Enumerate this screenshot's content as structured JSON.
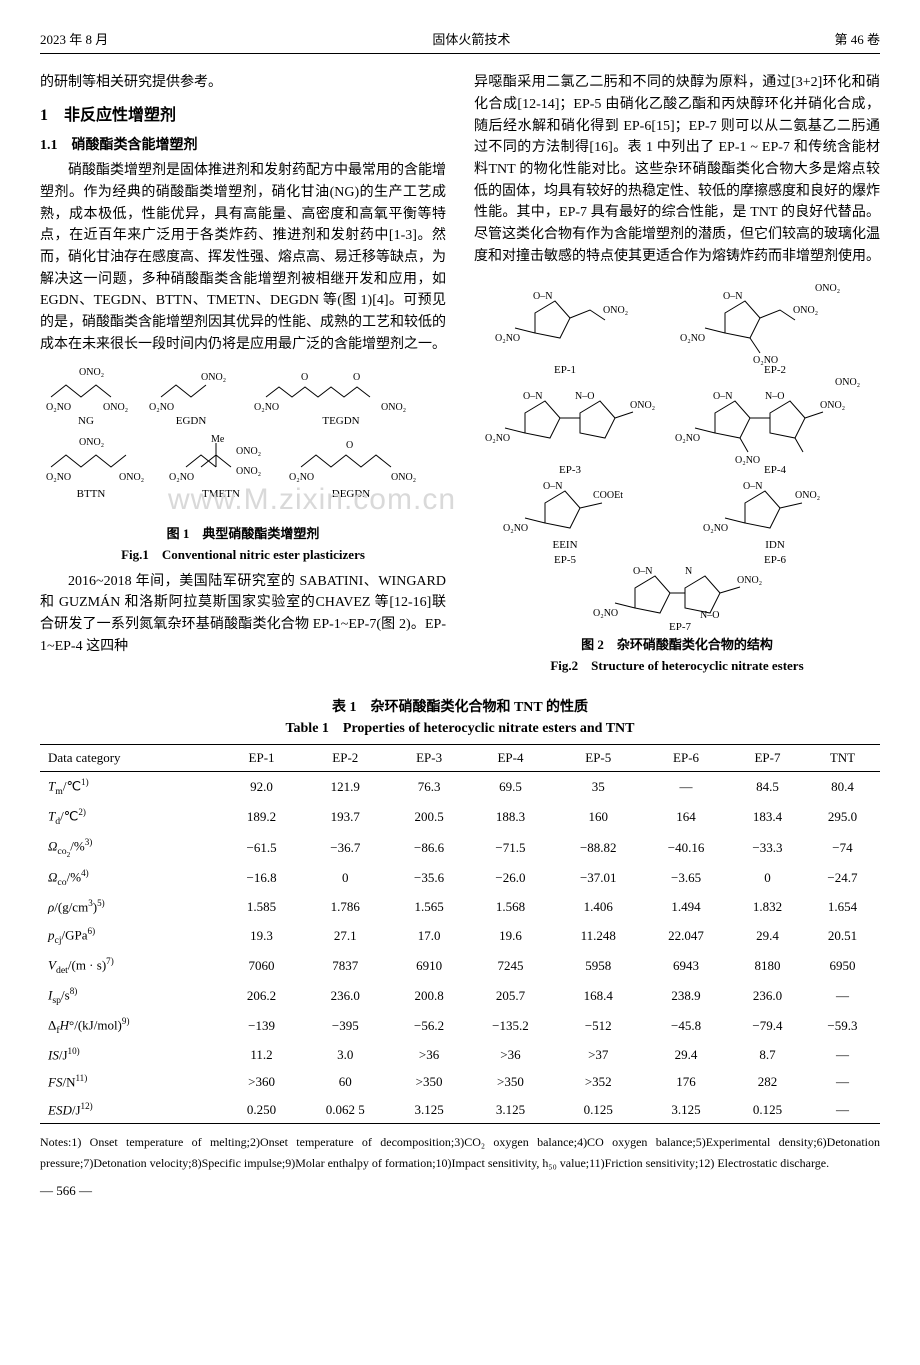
{
  "header": {
    "left": "2023 年 8 月",
    "center": "固体火箭技术",
    "right": "第 46 卷"
  },
  "left_col": {
    "intro_tail": "的研制等相关研究提供参考。",
    "sec1": "1　非反应性增塑剂",
    "sec1_1": "1.1　硝酸酯类含能增塑剂",
    "p1": "硝酸酯类增塑剂是固体推进剂和发射药配方中最常用的含能增塑剂。作为经典的硝酸酯类增塑剂，硝化甘油(NG)的生产工艺成熟，成本极低，性能优异，具有高能量、高密度和高氧平衡等特点，在近百年来广泛用于各类炸药、推进剂和发射药中[1-3]。然而，硝化甘油存在感度高、挥发性强、熔点高、易迁移等缺点，为解决这一问题，多种硝酸酯类含能增塑剂被相继开发和应用，如 EGDN、TEGDN、BTTN、TMETN、DEGDN 等(图 1)[4]。可预见的是，硝酸酯类含能增塑剂因其优异的性能、成熟的工艺和较低的成本在未来很长一段时间内仍将是应用最广泛的含能增塑剂之一。",
    "fig1_cn": "图 1　典型硝酸酯类增塑剂",
    "fig1_en": "Fig.1　Conventional nitric ester plasticizers",
    "p2": "2016~2018 年间，美国陆军研究室的 SABATINI、WINGARD 和 GUZMÁN 和洛斯阿拉莫斯国家实验室的CHAVEZ 等[12-16]联合研发了一系列氮氧杂环基硝酸酯类化合物 EP-1~EP-7(图 2)。EP-1~EP-4 这四种",
    "watermark": "www.M.zixin.com.cn",
    "struct_labels": {
      "NG": "NG",
      "EGDN": "EGDN",
      "TEGDN": "TEGDN",
      "BTTN": "BTTN",
      "TMETN": "TMETN",
      "DEGDN": "DEGDN"
    }
  },
  "right_col": {
    "p1": "异噁酯采用二氯乙二肟和不同的炔醇为原料，通过[3+2]环化和硝化合成[12-14]；EP-5 由硝化乙酸乙酯和丙炔醇环化并硝化合成，随后经水解和硝化得到 EP-6[15]；EP-7 则可以从二氨基乙二肟通过不同的方法制得[16]。表 1 中列出了 EP-1 ~ EP-7 和传统含能材料TNT 的物化性能对比。这些杂环硝酸酯类化合物大多是熔点较低的固体，均具有较好的热稳定性、较低的摩擦感度和良好的爆炸性能。其中，EP-7 具有最好的综合性能，是 TNT 的良好代替品。尽管这类化合物有作为含能增塑剂的潜质，但它们较高的玻璃化温度和对撞击敏感的特点使其更适合作为熔铸炸药而非增塑剂使用。",
    "fig2_cn": "图 2　杂环硝酸酯类化合物的结构",
    "fig2_en": "Fig.2　Structure of heterocyclic nitrate esters",
    "struct_labels": {
      "ep1": "EP-1",
      "ep2": "EP-2",
      "ep3": "EP-3",
      "ep4": "EP-4",
      "ep5a": "EEIN",
      "ep5b": "EP-5",
      "ep6a": "IDN",
      "ep6b": "EP-6",
      "ep7": "EP-7"
    }
  },
  "table": {
    "caption_cn": "表 1　杂环硝酸酯类化合物和 TNT 的性质",
    "caption_en": "Table 1　Properties of heterocyclic nitrate esters and TNT",
    "columns": [
      "Data category",
      "EP-1",
      "EP-2",
      "EP-3",
      "EP-4",
      "EP-5",
      "EP-6",
      "EP-7",
      "TNT"
    ],
    "row_labels_html": [
      "<i>T</i><span class='sub'>m</span>/℃<span class='sup'>1)</span>",
      "<i>T</i><span class='sub'>d</span>/℃<span class='sup'>2)</span>",
      "<i>Ω</i><span class='sub'>co<span class='sub'>2</span></span>/%<span class='sup'>3)</span>",
      "<i>Ω</i><span class='sub'>co</span>/%<span class='sup'>4)</span>",
      "<i>ρ</i>/(g/cm<span class='sup'>3</span>)<span class='sup'>5)</span>",
      "<i>p</i><span class='sub'>cj</span>/GPa<span class='sup'>6)</span>",
      "<i>V</i><span class='sub'>det</span>/(m · s)<span class='sup'>7)</span>",
      "<i>I</i><span class='sub'>sp</span>/s<span class='sup'>8)</span>",
      "Δ<span class='sub'>f</span><i>H</i>°/(kJ/mol)<span class='sup'>9)</span>",
      "<i>IS</i>/J<span class='sup'>10)</span>",
      "<i>FS</i>/N<span class='sup'>11)</span>",
      "<i>ESD</i>/J<span class='sup'>12)</span>"
    ],
    "rows": [
      [
        "92.0",
        "121.9",
        "76.3",
        "69.5",
        "35",
        "—",
        "84.5",
        "80.4"
      ],
      [
        "189.2",
        "193.7",
        "200.5",
        "188.3",
        "160",
        "164",
        "183.4",
        "295.0"
      ],
      [
        "−61.5",
        "−36.7",
        "−86.6",
        "−71.5",
        "−88.82",
        "−40.16",
        "−33.3",
        "−74"
      ],
      [
        "−16.8",
        "0",
        "−35.6",
        "−26.0",
        "−37.01",
        "−3.65",
        "0",
        "−24.7"
      ],
      [
        "1.585",
        "1.786",
        "1.565",
        "1.568",
        "1.406",
        "1.494",
        "1.832",
        "1.654"
      ],
      [
        "19.3",
        "27.1",
        "17.0",
        "19.6",
        "11.248",
        "22.047",
        "29.4",
        "20.51"
      ],
      [
        "7060",
        "7837",
        "6910",
        "7245",
        "5958",
        "6943",
        "8180",
        "6950"
      ],
      [
        "206.2",
        "236.0",
        "200.8",
        "205.7",
        "168.4",
        "238.9",
        "236.0",
        "—"
      ],
      [
        "−139",
        "−395",
        "−56.2",
        "−135.2",
        "−512",
        "−45.8",
        "−79.4",
        "−59.3"
      ],
      [
        "11.2",
        "3.0",
        ">36",
        ">36",
        ">37",
        "29.4",
        "8.7",
        "—"
      ],
      [
        ">360",
        "60",
        ">350",
        ">350",
        ">352",
        "176",
        "282",
        "—"
      ],
      [
        "0.250",
        "0.062 5",
        "3.125",
        "3.125",
        "0.125",
        "3.125",
        "0.125",
        "—"
      ]
    ]
  },
  "notes": "Notes:1) Onset temperature of melting;2)Onset temperature of decomposition;3)CO₂ oxygen balance;4)CO oxygen balance;5)Experimental density;6)Detonation pressure;7)Detonation velocity;8)Specific impulse;9)Molar enthalpy of formation;10)Impact sensitivity, h₅₀ value;11)Friction sensitivity;12) Electrostatic discharge.",
  "page_num": "— 566 —",
  "colors": {
    "text": "#000000",
    "rule": "#000000",
    "watermark": "#d9d9d9",
    "bg": "#ffffff"
  }
}
